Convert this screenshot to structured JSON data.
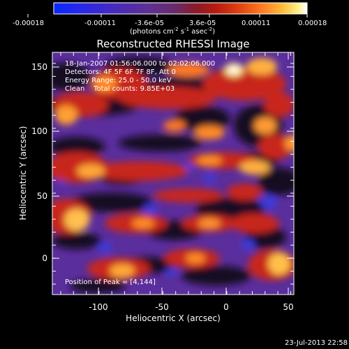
{
  "colorbar": {
    "tick_labels": [
      "-0.00018",
      "-0.00011",
      "-3.6e-05",
      "3.6e-05",
      "0.00011",
      "0.00018"
    ],
    "unit_base": "(photons cm",
    "unit_exp1": "-2",
    "unit_mid": " s",
    "unit_exp2": "-1",
    "unit_tail": " asec",
    "unit_exp3": "-2",
    "unit_close": ")",
    "colors": [
      "#1530ff",
      "#3a20d8",
      "#5a2aa0",
      "#6b3a8f",
      "#7a2a55",
      "#9a1e20",
      "#c02010",
      "#e04010",
      "#ff7020",
      "#ffb030",
      "#ffe070",
      "#ffffff"
    ]
  },
  "image": {
    "title": "Reconstructed RHESSI Image",
    "info_lines": [
      "18-Jan-2007 01:56:06.000 to 02:02:06.000",
      "Detectors: 4F 5F 6F 7F 8F, Att 0",
      "Energy Range: 25.0 - 50.0 keV",
      "Clean    Total counts: 9.85E+03"
    ],
    "peak_label": "Position of Peak = [4,144]",
    "x_label": "Heliocentric X (arcsec)",
    "y_label": "Heliocentric Y (arcsec)",
    "x_ticks": [
      "-100",
      "-50",
      "0",
      "50"
    ],
    "y_ticks": [
      "0",
      "50",
      "100",
      "150"
    ],
    "x_range": [
      -135,
      55
    ],
    "y_range": [
      -28,
      165
    ],
    "background_color": "#5a2e9c"
  },
  "footer": {
    "timestamp": "23-Jul-2013 22:58"
  }
}
